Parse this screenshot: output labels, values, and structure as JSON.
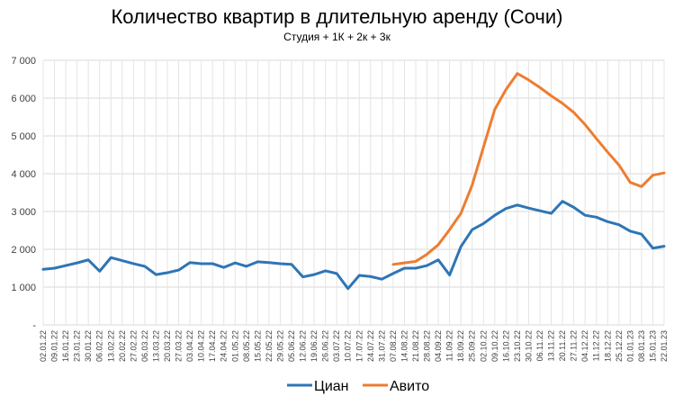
{
  "chart_data": {
    "type": "line",
    "title": "Количество квартир в длительную аренду (Сочи)",
    "subtitle": "Студия + 1К + 2к + 3к",
    "ylim": [
      0,
      7000
    ],
    "yticks": [
      0,
      1000,
      2000,
      3000,
      4000,
      5000,
      6000,
      7000
    ],
    "ytick_labels": [
      "-",
      "1 000",
      "2 000",
      "3 000",
      "4 000",
      "5 000",
      "6 000",
      "7 000"
    ],
    "grid": true,
    "legend_position": "bottom",
    "categories": [
      "02.01.22",
      "09.01.22",
      "16.01.22",
      "23.01.22",
      "30.01.22",
      "06.02.22",
      "13.02.22",
      "20.02.22",
      "27.02.22",
      "06.03.22",
      "13.03.22",
      "20.03.22",
      "27.03.22",
      "03.04.22",
      "10.04.22",
      "17.04.22",
      "24.04.22",
      "01.05.22",
      "08.05.22",
      "15.05.22",
      "22.05.22",
      "29.05.22",
      "05.06.22",
      "12.06.22",
      "19.06.22",
      "26.06.22",
      "03.07.22",
      "10.07.22",
      "17.07.22",
      "24.07.22",
      "31.07.22",
      "07.08.22",
      "14.08.22",
      "21.08.22",
      "28.08.22",
      "04.09.22",
      "11.09.22",
      "18.09.22",
      "25.09.22",
      "02.10.22",
      "09.10.22",
      "16.10.22",
      "23.10.22",
      "30.10.22",
      "06.11.22",
      "13.11.22",
      "20.11.22",
      "27.11.22",
      "04.12.22",
      "11.12.22",
      "18.12.22",
      "25.12.22",
      "01.01.23",
      "08.01.23",
      "15.01.23",
      "22.01.23"
    ],
    "series": [
      {
        "name": "Циан",
        "color": "#2e75b6",
        "values": [
          1470,
          1500,
          1570,
          1640,
          1720,
          1420,
          1780,
          1700,
          1620,
          1550,
          1330,
          1380,
          1450,
          1650,
          1620,
          1620,
          1520,
          1640,
          1550,
          1670,
          1650,
          1620,
          1600,
          1270,
          1330,
          1430,
          1360,
          960,
          1310,
          1280,
          1210,
          1360,
          1500,
          1500,
          1570,
          1720,
          1320,
          2070,
          2520,
          2680,
          2900,
          3080,
          3170,
          3090,
          3020,
          2950,
          3270,
          3110,
          2900,
          2850,
          2730,
          2650,
          2480,
          2400,
          2030,
          2080
        ]
      },
      {
        "name": "Авито",
        "color": "#ed7d31",
        "values": [
          null,
          null,
          null,
          null,
          null,
          null,
          null,
          null,
          null,
          null,
          null,
          null,
          null,
          null,
          null,
          null,
          null,
          null,
          null,
          null,
          null,
          null,
          null,
          null,
          null,
          null,
          null,
          null,
          null,
          null,
          null,
          1600,
          1640,
          1680,
          1870,
          2120,
          2520,
          2950,
          3700,
          4700,
          5700,
          6230,
          6650,
          6480,
          6280,
          6060,
          5860,
          5620,
          5300,
          4930,
          4570,
          4230,
          3770,
          3660,
          3960,
          4020
        ]
      }
    ]
  }
}
